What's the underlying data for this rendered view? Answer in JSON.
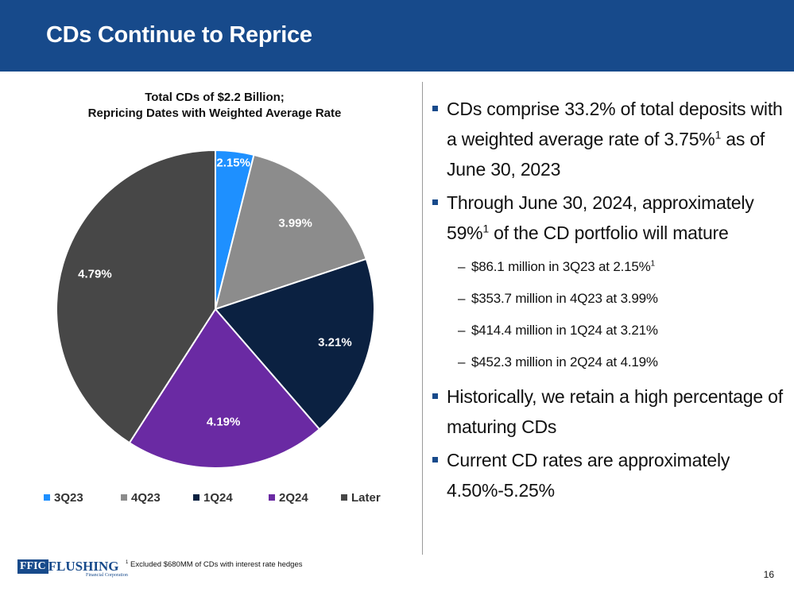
{
  "header": {
    "title": "CDs Continue to Reprice"
  },
  "chart_title": {
    "line1": "Total CDs of $2.2 Billion;",
    "line2": "Repricing Dates with Weighted Average Rate"
  },
  "chart_data": {
    "type": "pie",
    "title": "Total CDs of $2.2 Billion; Repricing Dates with Weighted Average Rate",
    "categories": [
      "3Q23",
      "4Q23",
      "1Q24",
      "2Q24",
      "Later"
    ],
    "values": [
      86.1,
      353.7,
      414.4,
      452.3,
      904.4
    ],
    "value_units": "$ million (Later slice estimated from total)",
    "data_labels": [
      "2.15%",
      "3.99%",
      "3.21%",
      "4.19%",
      "4.79%"
    ],
    "colors": [
      "#1e90ff",
      "#8c8c8c",
      "#0b2141",
      "#6a2aa3",
      "#474747"
    ],
    "label_colors": [
      "#ffffff",
      "#ffffff",
      "#ffffff",
      "#ffffff",
      "#ffffff"
    ],
    "legend_position": "bottom"
  },
  "bullets": [
    {
      "text_pre": "CDs comprise 33.2% of total deposits with a weighted average rate of 3.75%",
      "sup": "1",
      "text_post": " as of June 30, 2023"
    },
    {
      "text_pre": "Through June 30, 2024, approximately 59%",
      "sup": "1",
      "text_post": " of the CD portfolio will mature"
    }
  ],
  "sub_bullets": [
    {
      "text": "$86.1 million in 3Q23 at 2.15%",
      "sup": "1"
    },
    {
      "text": "$353.7 million in 4Q23 at 3.99%",
      "sup": ""
    },
    {
      "text": "$414.4 million in 1Q24 at 3.21%",
      "sup": ""
    },
    {
      "text": "$452.3 million in 2Q24 at 4.19%",
      "sup": ""
    }
  ],
  "bullets_after": [
    {
      "text": "Historically, we retain a high percentage of maturing CDs"
    },
    {
      "text": "Current CD rates are approximately 4.50%-5.25%"
    }
  ],
  "sub_dash": "–",
  "footer": {
    "logo_box": "FFIC",
    "logo_word": "FLUSHING",
    "logo_sub": "Financial Corporation",
    "footnote_mark": "1",
    "footnote": "Excluded $680MM of CDs with interest rate hedges",
    "page_number": "16"
  }
}
